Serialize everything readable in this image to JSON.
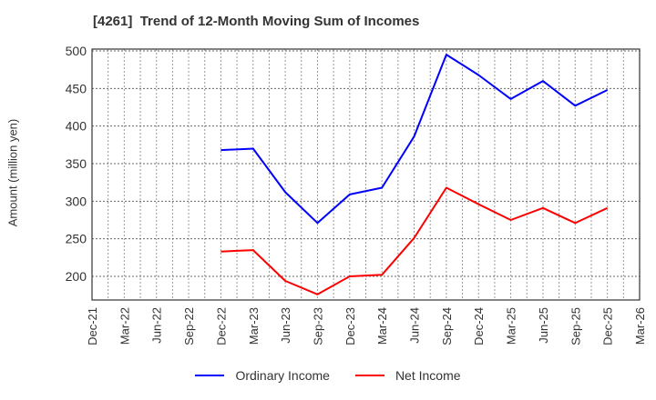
{
  "title": "[4261]  Trend of 12-Month Moving Sum of Incomes",
  "chart_data": {
    "type": "line",
    "title": "[4261]  Trend of 12-Month Moving Sum of Incomes",
    "xlabel": "",
    "ylabel": "Amount (million yen)",
    "ylim": [
      170,
      502
    ],
    "yticks": [
      200,
      250,
      300,
      350,
      400,
      450,
      500
    ],
    "grid": true,
    "legend_position": "bottom",
    "categories": [
      "Dec-21",
      "Mar-22",
      "Jun-22",
      "Sep-22",
      "Dec-22",
      "Mar-23",
      "Jun-23",
      "Sep-23",
      "Dec-23",
      "Mar-24",
      "Jun-24",
      "Sep-24",
      "Dec-24",
      "Mar-25",
      "Jun-25",
      "Sep-25",
      "Dec-25",
      "Mar-26"
    ],
    "series": [
      {
        "name": "Ordinary Income",
        "color": "#0000ff",
        "values": [
          null,
          null,
          null,
          null,
          368,
          370,
          312,
          271,
          309,
          318,
          386,
          495,
          468,
          436,
          460,
          427,
          448,
          null
        ]
      },
      {
        "name": "Net Income",
        "color": "#ff0000",
        "values": [
          null,
          null,
          null,
          null,
          233,
          235,
          194,
          176,
          200,
          202,
          251,
          318,
          296,
          275,
          291,
          271,
          291,
          null
        ]
      }
    ]
  }
}
